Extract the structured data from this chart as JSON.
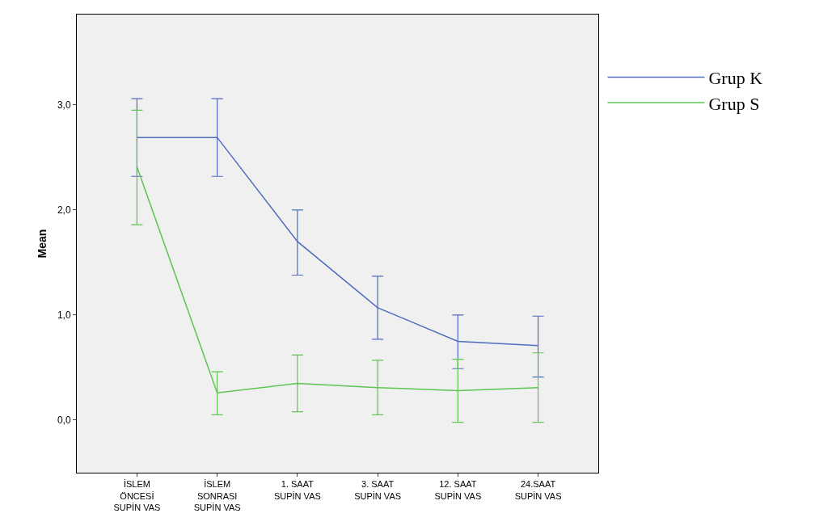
{
  "chart_data": {
    "type": "line",
    "ylabel": "Mean",
    "categories": [
      "İSLEM\nÖNCESİ\nSUPİN VAS",
      "İSLEM\nSONRASI\nSUPİN VAS",
      "1. SAAT\nSUPİN VAS",
      "3. SAAT\nSUPİN VAS",
      "12. SAAT\nSUPİN VAS",
      "24.SAAT\nSUPİN VAS"
    ],
    "series": [
      {
        "name": "Grup K",
        "color": "#4f6bbf",
        "values": [
          2.69,
          2.69,
          1.7,
          1.07,
          0.75,
          0.71
        ],
        "errors": [
          [
            2.32,
            3.06
          ],
          [
            2.32,
            3.06
          ],
          [
            1.38,
            2.0
          ],
          [
            0.77,
            1.37
          ],
          [
            0.49,
            1.0
          ],
          [
            0.41,
            0.99
          ]
        ]
      },
      {
        "name": "Grup S",
        "color": "#5dc44f",
        "values": [
          2.41,
          0.26,
          0.35,
          0.31,
          0.28,
          0.31
        ],
        "errors": [
          [
            1.86,
            2.95
          ],
          [
            0.05,
            0.46
          ],
          [
            0.08,
            0.62
          ],
          [
            0.05,
            0.57
          ],
          [
            -0.02,
            0.58
          ],
          [
            -0.02,
            0.64
          ]
        ]
      }
    ],
    "ylim": [
      -0.5,
      3.86
    ],
    "yticks": [
      {
        "value": 0,
        "label": "0,0"
      },
      {
        "value": 1,
        "label": "1,0"
      },
      {
        "value": 2,
        "label": "2,0"
      },
      {
        "value": 3,
        "label": "3,0"
      }
    ],
    "grid": false,
    "legend": "right",
    "marker": "none",
    "line_style": "solid"
  }
}
